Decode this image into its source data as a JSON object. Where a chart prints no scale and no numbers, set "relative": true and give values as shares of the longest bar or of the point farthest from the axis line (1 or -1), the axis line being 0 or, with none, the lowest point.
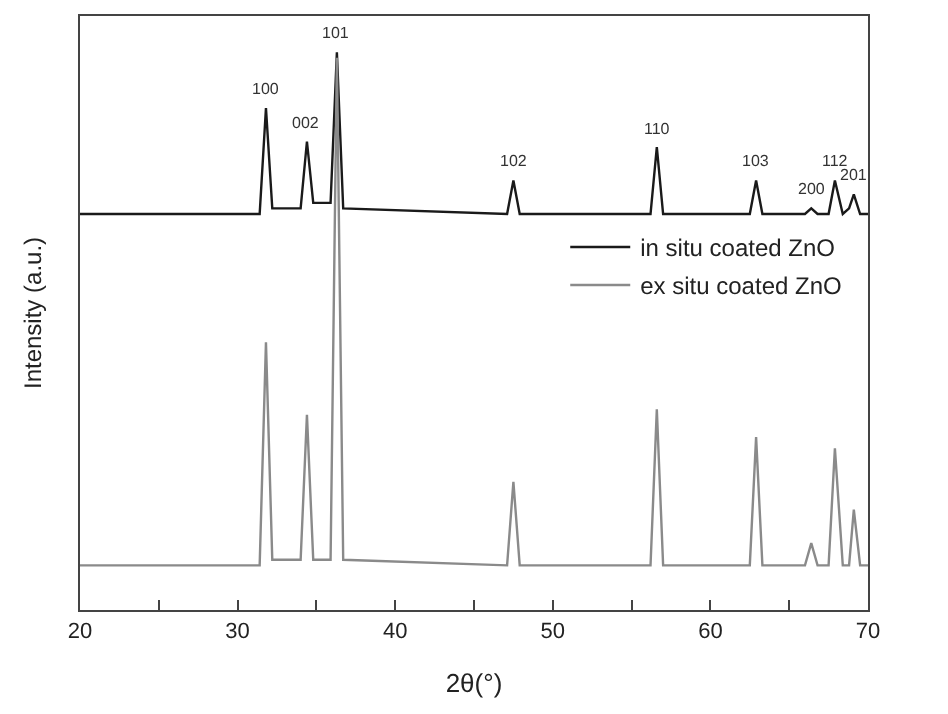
{
  "chart_data": {
    "type": "line",
    "relative": true,
    "xlabel": "2θ(°)",
    "ylabel": "Intensity (a.u.)",
    "xlim": [
      20,
      70
    ],
    "xticks": [
      20,
      {
        "value": 25,
        "label": null
      },
      30,
      {
        "value": 35,
        "label": null
      },
      40,
      {
        "value": 45,
        "label": null
      },
      50,
      {
        "value": 55,
        "label": null
      },
      60,
      {
        "value": 65,
        "label": null
      },
      70
    ],
    "legend": "top right",
    "marker": "none",
    "line_style": "solid",
    "series": [
      {
        "name": "in situ coated ZnO",
        "color": "#1a1a1a",
        "x": [
          20,
          31.4,
          31.8,
          32.2,
          34.0,
          34.4,
          34.8,
          35.9,
          36.3,
          36.7,
          47.1,
          47.5,
          47.9,
          56.2,
          56.6,
          57.0,
          62.5,
          62.9,
          63.3,
          66.0,
          66.4,
          66.8,
          67.5,
          67.9,
          68.4,
          68.8,
          69.1,
          69.5,
          70
        ],
        "values": [
          0.71,
          0.71,
          0.9,
          0.72,
          0.72,
          0.84,
          0.73,
          0.73,
          1.0,
          0.72,
          0.71,
          0.77,
          0.71,
          0.71,
          0.83,
          0.71,
          0.71,
          0.77,
          0.71,
          0.71,
          0.72,
          0.71,
          0.71,
          0.77,
          0.71,
          0.72,
          0.745,
          0.71,
          0.71
        ]
      },
      {
        "name": "ex situ coated ZnO",
        "color": "#8a8a8a",
        "x": [
          20,
          31.4,
          31.8,
          32.2,
          34.0,
          34.4,
          34.8,
          35.9,
          36.3,
          36.7,
          47.1,
          47.5,
          47.9,
          56.2,
          56.6,
          57.0,
          62.5,
          62.9,
          63.3,
          66.0,
          66.4,
          66.8,
          67.5,
          67.9,
          68.4,
          68.8,
          69.1,
          69.5,
          70
        ],
        "values": [
          0.08,
          0.08,
          0.48,
          0.09,
          0.09,
          0.35,
          0.09,
          0.09,
          0.99,
          0.09,
          0.08,
          0.23,
          0.08,
          0.08,
          0.36,
          0.08,
          0.08,
          0.31,
          0.08,
          0.08,
          0.12,
          0.08,
          0.08,
          0.29,
          0.08,
          0.08,
          0.18,
          0.08,
          0.08
        ]
      }
    ],
    "annotations": [
      {
        "text": "100",
        "x": 31.8,
        "y": 0.9
      },
      {
        "text": "002",
        "x": 34.4,
        "y": 0.84
      },
      {
        "text": "101",
        "x": 36.3,
        "y": 1.0
      },
      {
        "text": "102",
        "x": 47.5,
        "y": 0.77
      },
      {
        "text": "110",
        "x": 56.6,
        "y": 0.83
      },
      {
        "text": "103",
        "x": 62.9,
        "y": 0.77
      },
      {
        "text": "200",
        "x": 66.4,
        "y": 0.72
      },
      {
        "text": "112",
        "x": 67.9,
        "y": 0.77
      },
      {
        "text": "201",
        "x": 69.1,
        "y": 0.745
      }
    ]
  }
}
